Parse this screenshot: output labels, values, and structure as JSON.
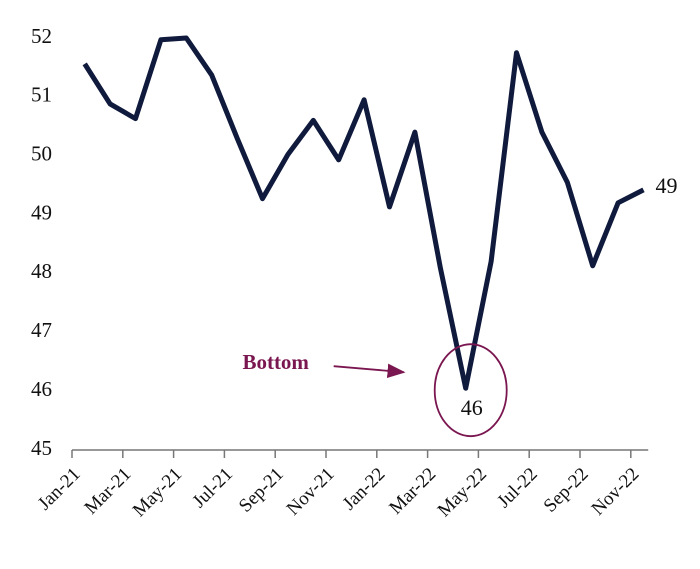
{
  "chart_data": {
    "type": "line",
    "categories": [
      "Jan-21",
      null,
      "Mar-21",
      null,
      "May-21",
      null,
      "Jul-21",
      null,
      "Sep-21",
      null,
      "Nov-21",
      null,
      "Jan-22",
      null,
      "Mar-22",
      null,
      "May-22",
      null,
      "Jul-22",
      null,
      "Sep-22",
      null,
      "Nov-22"
    ],
    "series": [
      {
        "color": "#0f1a3c",
        "values": [
          51.56,
          50.88,
          50.63,
          51.97,
          52.0,
          51.37,
          50.3,
          49.27,
          50.02,
          50.6,
          49.93,
          50.95,
          49.13,
          50.4,
          48.1,
          46.05,
          48.2,
          51.75,
          50.4,
          49.55,
          48.13,
          49.2,
          49.42
        ],
        "value_labels": [
          null,
          null,
          null,
          null,
          null,
          null,
          null,
          null,
          null,
          null,
          null,
          null,
          null,
          null,
          null,
          "46",
          null,
          null,
          null,
          null,
          null,
          null,
          "49"
        ]
      }
    ],
    "ylim": [
      45,
      52
    ],
    "yticks": [
      45,
      46,
      47,
      48,
      49,
      50,
      51,
      52
    ],
    "annotation": {
      "text": "Bottom",
      "color": "#7a1650",
      "target": 15
    }
  }
}
